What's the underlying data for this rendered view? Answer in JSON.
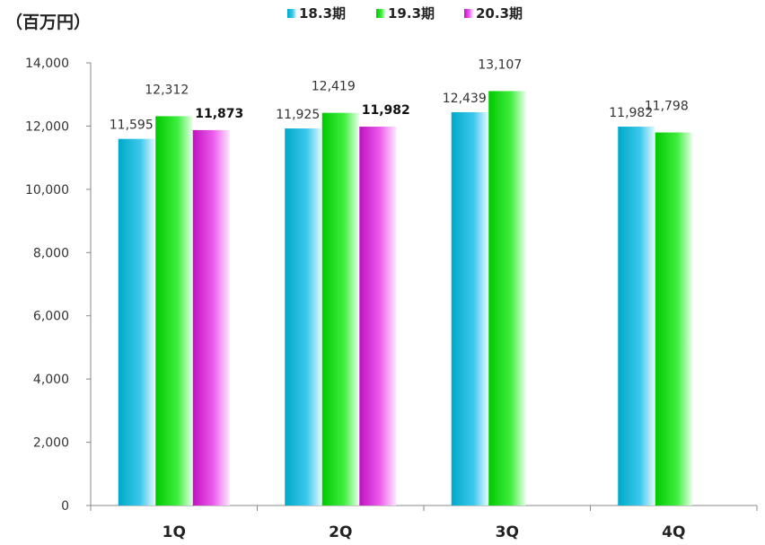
{
  "chart_data": {
    "type": "bar",
    "unit_label": "（百万円）",
    "categories": [
      "1Q",
      "2Q",
      "3Q",
      "4Q"
    ],
    "ylim": [
      0,
      14000
    ],
    "yticks": [
      0,
      2000,
      4000,
      6000,
      8000,
      10000,
      12000,
      14000
    ],
    "ytick_labels": [
      "0",
      "2,000",
      "4,000",
      "6,000",
      "8,000",
      "10,000",
      "12,000",
      "14,000"
    ],
    "legend_position": "top-center",
    "grid": false,
    "series": [
      {
        "name": "18.3期",
        "color": "#00b0d0",
        "values": [
          11595,
          11925,
          12439,
          11982
        ],
        "labels": [
          "11,595",
          "11,925",
          "12,439",
          "11,982"
        ],
        "bold": false
      },
      {
        "name": "19.3期",
        "color": "#00cc00",
        "values": [
          12312,
          12419,
          13107,
          11798
        ],
        "labels": [
          "12,312",
          "12,419",
          "13,107",
          "11,798"
        ],
        "bold": false
      },
      {
        "name": "20.3期",
        "color": "#cc22cc",
        "values": [
          11873,
          11982,
          null,
          null
        ],
        "labels": [
          "11,873",
          "11,982",
          "",
          ""
        ],
        "bold": true
      }
    ]
  }
}
